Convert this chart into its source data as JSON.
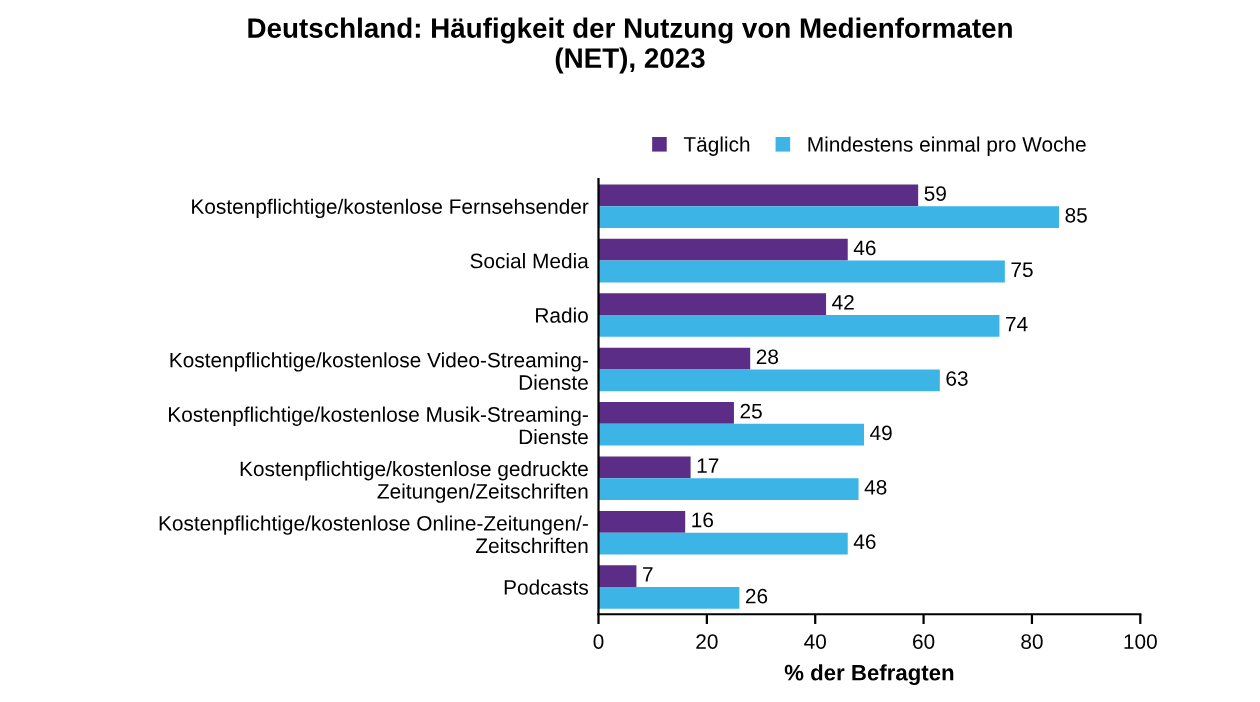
{
  "chart_data": {
    "type": "bar",
    "orientation": "horizontal",
    "title": "Deutschland: Häufigkeit der Nutzung von Medienformaten\n(NET), 2023",
    "xlabel": "% der Befragten",
    "categories": [
      "Kostenpflichtige/kostenlose Fernsehsender",
      "Social Media",
      "Radio",
      "Kostenpflichtige/kostenlose Video-Streaming-\nDienste",
      "Kostenpflichtige/kostenlose Musik-Streaming-\nDienste",
      "Kostenpflichtige/kostenlose gedruckte\nZeitungen/Zeitschriften",
      "Kostenpflichtige/kostenlose Online-Zeitungen/-\nZeitschriften",
      "Podcasts"
    ],
    "series": [
      {
        "name": "Täglich",
        "color": "#5b2d86",
        "values": [
          59,
          46,
          42,
          28,
          25,
          17,
          16,
          7
        ]
      },
      {
        "name": "Mindestens einmal pro Woche",
        "color": "#3cb4e5",
        "values": [
          85,
          75,
          74,
          63,
          49,
          48,
          46,
          26
        ]
      }
    ],
    "xlim": [
      0,
      100
    ],
    "xticks": [
      0,
      20,
      40,
      60,
      80,
      100
    ],
    "data_labels": true,
    "legend": "top",
    "grid": false
  }
}
